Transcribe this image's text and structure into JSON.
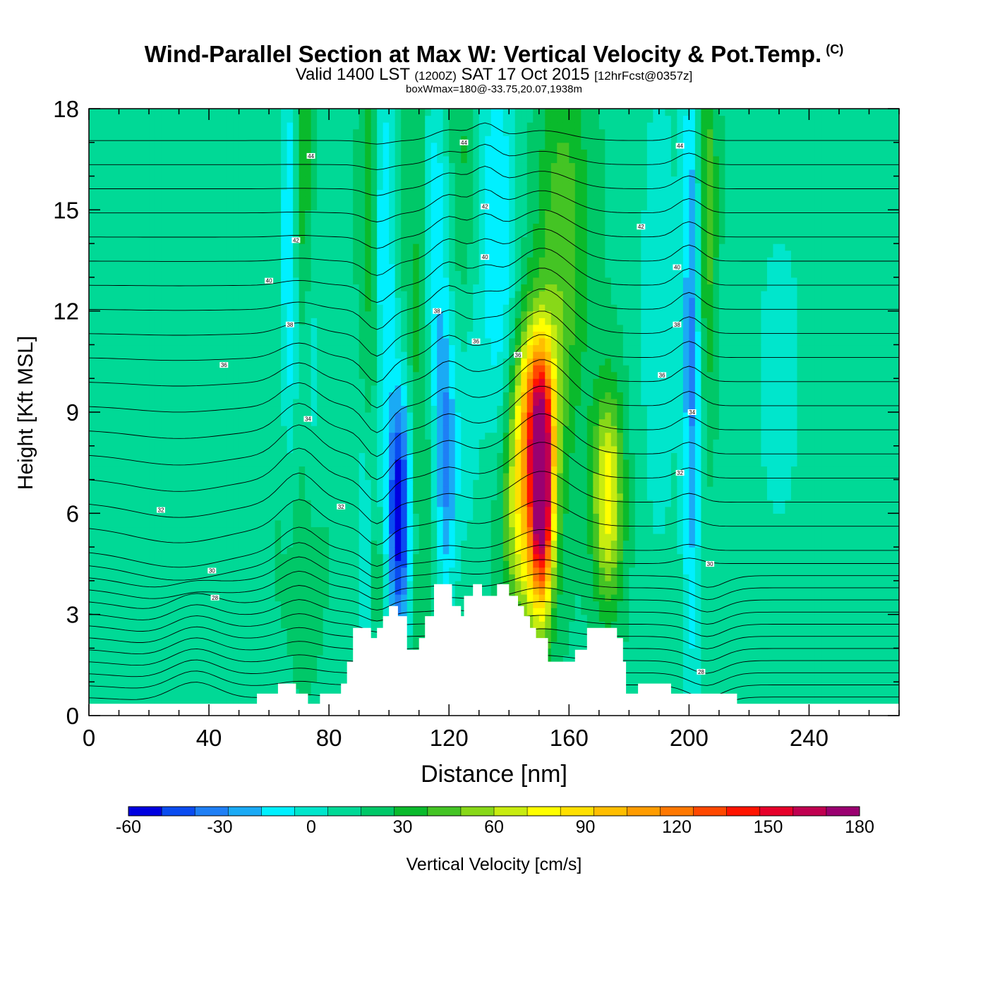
{
  "header": {
    "title": "Wind-Parallel Section at Max W: Vertical Velocity & Pot.Temp.",
    "copyright": "(C)",
    "valid_prefix": "Valid 1400 LST",
    "valid_z": "(1200Z)",
    "valid_date": "SAT 17 Oct 2015",
    "forecast": "[12hrFcst@0357z]",
    "box_info": "boxWmax=180@-33.75,20.07,1938m"
  },
  "chart_data": {
    "type": "heatmap",
    "xlabel": "Distance [nm]",
    "ylabel": "Height [Kft MSL]",
    "xlim": [
      0,
      270
    ],
    "ylim": [
      0,
      18
    ],
    "xticks": [
      0,
      40,
      80,
      120,
      160,
      200,
      240
    ],
    "yticks": [
      0,
      3,
      6,
      9,
      12,
      15,
      18
    ],
    "colorbar": {
      "label": "Vertical Velocity [cm/s]",
      "min": -60,
      "max": 180,
      "step": 10,
      "tick_values": [
        -60,
        -30,
        0,
        30,
        60,
        90,
        120,
        150,
        180
      ],
      "colors": [
        "#0000e0",
        "#0a4cf0",
        "#1f7ff5",
        "#1aaaf5",
        "#00f0ff",
        "#00e6cc",
        "#00d996",
        "#00c868",
        "#0aba2c",
        "#44c424",
        "#88d818",
        "#c8ec10",
        "#ffff00",
        "#ffe000",
        "#ffbe00",
        "#ff9c00",
        "#ff7800",
        "#ff4800",
        "#ff1400",
        "#e6002a",
        "#c00050",
        "#9a0070"
      ]
    },
    "contour_field": "Potential temperature (isentropes)",
    "contour_labels": [
      {
        "v": "44",
        "x": 74,
        "y": 16.6
      },
      {
        "v": "44",
        "x": 125,
        "y": 17.0
      },
      {
        "v": "44",
        "x": 197,
        "y": 16.9
      },
      {
        "v": "42",
        "x": 69,
        "y": 14.1
      },
      {
        "v": "42",
        "x": 132,
        "y": 15.1
      },
      {
        "v": "42",
        "x": 184,
        "y": 14.5
      },
      {
        "v": "40",
        "x": 60,
        "y": 12.9
      },
      {
        "v": "40",
        "x": 132,
        "y": 13.6
      },
      {
        "v": "40",
        "x": 196,
        "y": 13.3
      },
      {
        "v": "38",
        "x": 67,
        "y": 11.6
      },
      {
        "v": "38",
        "x": 116,
        "y": 12.0
      },
      {
        "v": "38",
        "x": 196,
        "y": 11.6
      },
      {
        "v": "36",
        "x": 45,
        "y": 10.4
      },
      {
        "v": "36",
        "x": 129,
        "y": 11.1
      },
      {
        "v": "36",
        "x": 143,
        "y": 10.7
      },
      {
        "v": "36",
        "x": 191,
        "y": 10.1
      },
      {
        "v": "34",
        "x": 73,
        "y": 8.8
      },
      {
        "v": "34",
        "x": 201,
        "y": 9.0
      },
      {
        "v": "32",
        "x": 24,
        "y": 6.1
      },
      {
        "v": "32",
        "x": 84,
        "y": 6.2
      },
      {
        "v": "32",
        "x": 197,
        "y": 7.2
      },
      {
        "v": "30",
        "x": 41,
        "y": 4.3
      },
      {
        "v": "30",
        "x": 207,
        "y": 4.5
      },
      {
        "v": "28",
        "x": 42,
        "y": 3.5
      },
      {
        "v": "28",
        "x": 204,
        "y": 1.3
      }
    ]
  }
}
